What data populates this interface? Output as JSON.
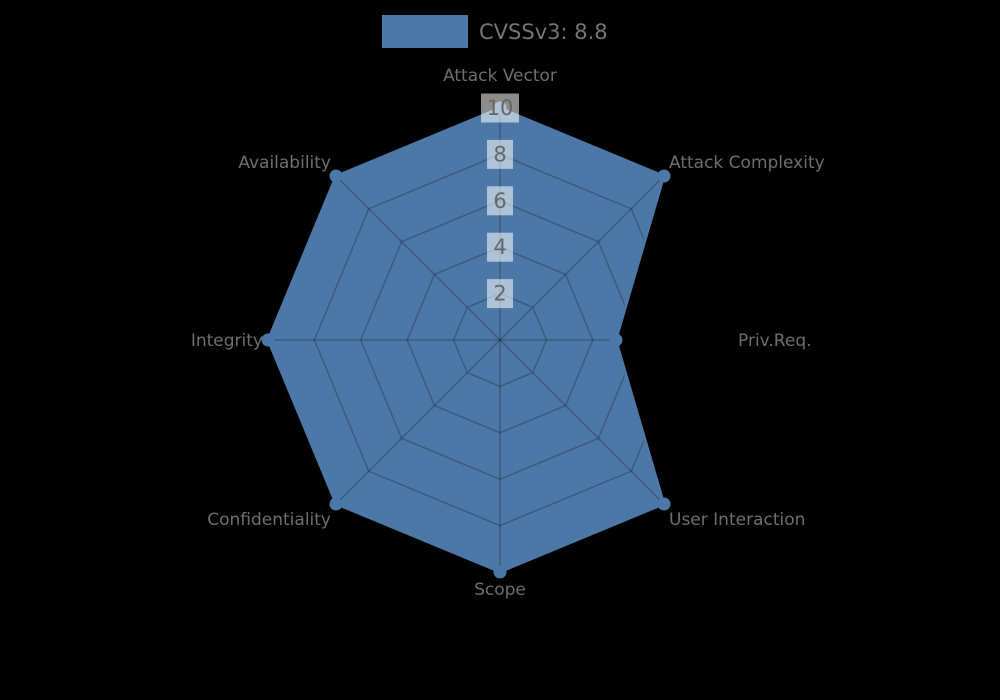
{
  "colors": {
    "background": "#000000",
    "series_fill": "#4c78a8",
    "grid_line": "rgba(0,0,0,0.22)",
    "axis_label": "#6e6e6e",
    "tick_label": "#666666",
    "tick_box": "rgba(255,255,255,0.55)",
    "legend_text": "#757575"
  },
  "legend": {
    "label": "CVSSv3: 8.8",
    "swatch_color": "#4c78a8"
  },
  "chart_data": {
    "type": "radar",
    "title": "",
    "categories": [
      "Attack Vector",
      "Attack Complexity",
      "Priv.Req.",
      "User Interaction",
      "Scope",
      "Confidentiality",
      "Integrity",
      "Availability"
    ],
    "series": [
      {
        "name": "CVSSv3: 8.8",
        "values": [
          10,
          10,
          5,
          10,
          10,
          10,
          10,
          10
        ],
        "color": "#4c78a8"
      }
    ],
    "r_axis": {
      "min": 0,
      "max": 10,
      "ticks": [
        2,
        4,
        6,
        8,
        10
      ]
    },
    "grid": true,
    "start_angle_deg": 90,
    "direction": "clockwise",
    "legend_position": "top-center"
  }
}
